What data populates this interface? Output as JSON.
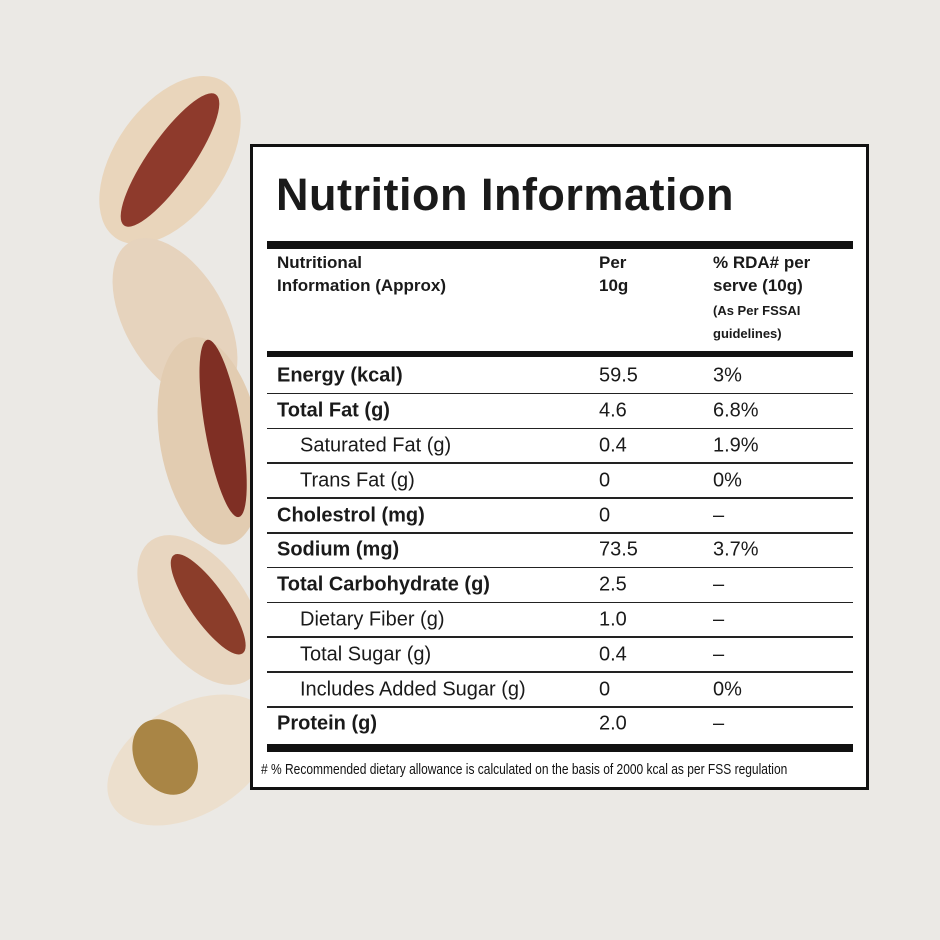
{
  "header": {
    "title": "Nutrition Information"
  },
  "table": {
    "columns": [
      {
        "lines": [
          "Nutritional",
          "Information (Approx)"
        ]
      },
      {
        "lines": [
          "Per",
          "10g"
        ]
      },
      {
        "lines": [
          "% RDA# per",
          "serve (10g)"
        ],
        "note": [
          "(As Per FSSAI",
          "guidelines)"
        ]
      }
    ],
    "rows": [
      [
        "Energy (kcal)",
        "59.5",
        "3%"
      ],
      [
        "Total Fat (g)",
        "4.6",
        "6.8%"
      ],
      [
        "Saturated Fat (g)",
        "0.4",
        "1.9%"
      ],
      [
        "Trans Fat (g)",
        "0",
        "0%"
      ],
      [
        "Cholestrol (mg)",
        "0",
        "–"
      ],
      [
        "Sodium (mg)",
        "73.5",
        "3.7%"
      ],
      [
        "Total Carbohydrate (g)",
        "2.5",
        "–"
      ],
      [
        "Dietary Fiber (g)",
        "1.0",
        "–"
      ],
      [
        "Total Sugar (g)",
        "0.4",
        "–"
      ],
      [
        "Includes Added Sugar (g)",
        "0",
        "0%"
      ],
      [
        "Protein (g)",
        "2.0",
        "–"
      ]
    ]
  },
  "footnote": "# % Recommended dietary allowance  is calculated on the basis of 2000 kcal as per FSS regulation"
}
